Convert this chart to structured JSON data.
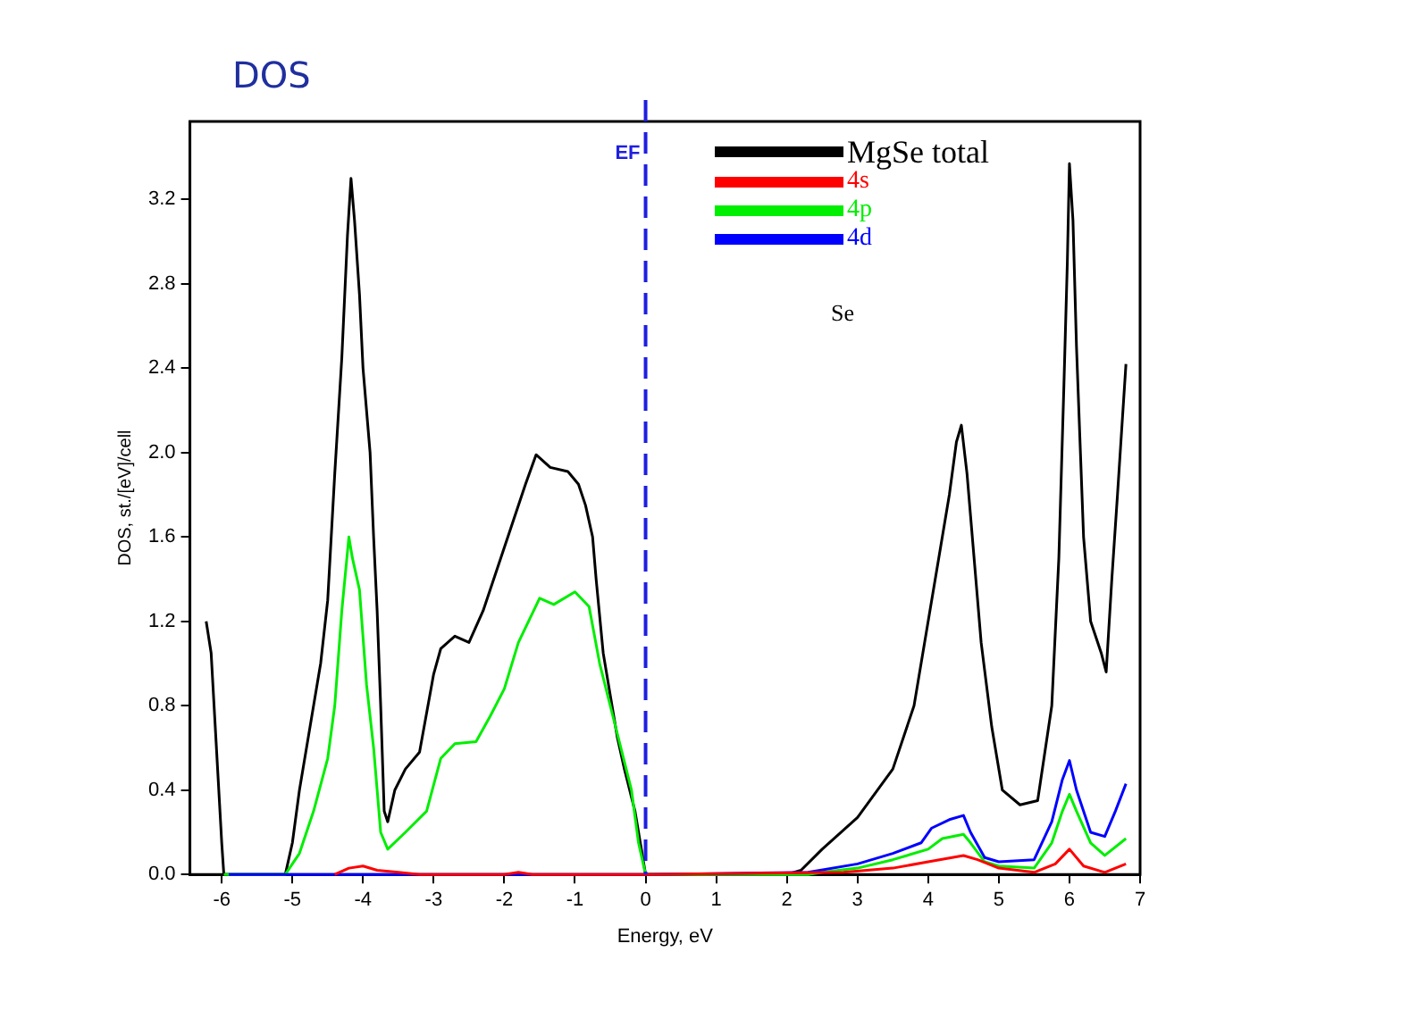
{
  "chart_data": {
    "type": "line",
    "title": "DOS",
    "xlabel": "Energy, eV",
    "ylabel": "DOS, st./[eV]/cell",
    "xlim": [
      -6.45,
      7
    ],
    "xticks": [
      -6,
      -5,
      -4,
      -3,
      -2,
      -1,
      0,
      1,
      2,
      3,
      4,
      5,
      6,
      7
    ],
    "ylim": [
      0,
      3.57
    ],
    "yticks": [
      {
        "value": 0,
        "label": "0.0"
      },
      0.4,
      0.8,
      1.2,
      1.6,
      {
        "value": 2,
        "label": "2.0"
      },
      2.4,
      2.8,
      3.2
    ],
    "grid": false,
    "legend": "top right",
    "marker": "none",
    "line_style": "solid",
    "annotations": [
      "Se"
    ],
    "ref_lines": [
      {
        "axis": "x",
        "value": 0,
        "label": "EF",
        "color": "#1f1fe0",
        "line_style": "dashed"
      }
    ],
    "series": [
      {
        "name": "MgSe total",
        "color": "#000000",
        "x": [
          -6.22,
          -6.15,
          -6.1,
          -6.05,
          -6.0,
          -5.97,
          -5.1,
          -5.0,
          -4.9,
          -4.8,
          -4.7,
          -4.6,
          -4.5,
          -4.4,
          -4.3,
          -4.22,
          -4.17,
          -4.12,
          -4.05,
          -4.0,
          -3.9,
          -3.85,
          -3.8,
          -3.75,
          -3.7,
          -3.65,
          -3.55,
          -3.4,
          -3.2,
          -3.0,
          -2.9,
          -2.7,
          -2.5,
          -2.3,
          -2.1,
          -1.9,
          -1.7,
          -1.55,
          -1.35,
          -1.1,
          -0.95,
          -0.85,
          -0.75,
          -0.7,
          -0.6,
          -0.5,
          -0.4,
          -0.3,
          -0.15,
          -0.05,
          0,
          2.0,
          2.2,
          2.5,
          3.0,
          3.5,
          3.8,
          4.0,
          4.15,
          4.3,
          4.4,
          4.47,
          4.55,
          4.65,
          4.75,
          4.9,
          5.05,
          5.3,
          5.55,
          5.75,
          5.85,
          5.92,
          5.97,
          6.0,
          6.05,
          6.1,
          6.2,
          6.3,
          6.45,
          6.52,
          6.6,
          6.68,
          6.8
        ],
        "values": [
          1.2,
          1.05,
          0.75,
          0.45,
          0.15,
          0,
          0,
          0.15,
          0.4,
          0.6,
          0.8,
          1.0,
          1.3,
          1.9,
          2.45,
          3.03,
          3.3,
          3.1,
          2.75,
          2.4,
          2.0,
          1.6,
          1.25,
          0.8,
          0.3,
          0.25,
          0.4,
          0.5,
          0.58,
          0.95,
          1.07,
          1.13,
          1.1,
          1.25,
          1.45,
          1.65,
          1.85,
          1.99,
          1.93,
          1.91,
          1.85,
          1.75,
          1.6,
          1.4,
          1.05,
          0.85,
          0.65,
          0.5,
          0.3,
          0.1,
          0,
          0,
          0.02,
          0.12,
          0.27,
          0.5,
          0.8,
          1.2,
          1.5,
          1.8,
          2.05,
          2.13,
          1.9,
          1.5,
          1.1,
          0.7,
          0.4,
          0.33,
          0.35,
          0.8,
          1.5,
          2.3,
          2.9,
          3.37,
          3.1,
          2.5,
          1.6,
          1.2,
          1.05,
          0.96,
          1.4,
          1.8,
          2.42
        ]
      },
      {
        "name": "4s",
        "color": "#ff0000",
        "x": [
          -4.4,
          -4.2,
          -4.0,
          -3.8,
          -3.5,
          -3.2,
          -2.0,
          -1.8,
          -1.6,
          0,
          2.8,
          3.5,
          4.0,
          4.5,
          4.7,
          5.0,
          5.5,
          5.8,
          6.0,
          6.2,
          6.5,
          6.8
        ],
        "values": [
          0,
          0.03,
          0.04,
          0.02,
          0.01,
          0,
          0,
          0.01,
          0,
          0,
          0.01,
          0.03,
          0.06,
          0.09,
          0.07,
          0.03,
          0.01,
          0.05,
          0.12,
          0.04,
          0.01,
          0.05
        ]
      },
      {
        "name": "4p",
        "color": "#00ee00",
        "x": [
          -5.97,
          -5.1,
          -4.9,
          -4.7,
          -4.5,
          -4.4,
          -4.3,
          -4.2,
          -4.15,
          -4.05,
          -3.95,
          -3.85,
          -3.75,
          -3.65,
          -3.4,
          -3.1,
          -2.9,
          -2.7,
          -2.4,
          -2.2,
          -2.0,
          -1.8,
          -1.5,
          -1.3,
          -1.0,
          -0.8,
          -0.65,
          -0.5,
          -0.35,
          -0.2,
          -0.1,
          0,
          2.3,
          2.5,
          3.0,
          3.5,
          4.0,
          4.2,
          4.5,
          4.6,
          4.8,
          5.0,
          5.5,
          5.75,
          5.9,
          6.0,
          6.1,
          6.3,
          6.5,
          6.8
        ],
        "values": [
          0,
          0,
          0.1,
          0.3,
          0.55,
          0.8,
          1.25,
          1.6,
          1.5,
          1.35,
          0.9,
          0.6,
          0.2,
          0.12,
          0.2,
          0.3,
          0.55,
          0.62,
          0.63,
          0.75,
          0.88,
          1.1,
          1.31,
          1.28,
          1.34,
          1.27,
          1.0,
          0.8,
          0.6,
          0.4,
          0.15,
          0,
          0,
          0.01,
          0.03,
          0.07,
          0.12,
          0.17,
          0.19,
          0.15,
          0.06,
          0.04,
          0.03,
          0.15,
          0.3,
          0.38,
          0.3,
          0.15,
          0.09,
          0.17
        ]
      },
      {
        "name": "4d",
        "color": "#0000ff",
        "x": [
          -5.9,
          0,
          2.3,
          3.0,
          3.5,
          3.9,
          4.05,
          4.3,
          4.5,
          4.6,
          4.8,
          5.0,
          5.5,
          5.75,
          5.9,
          6.0,
          6.1,
          6.3,
          6.5,
          6.65,
          6.8
        ],
        "values": [
          0,
          0,
          0.01,
          0.05,
          0.1,
          0.15,
          0.22,
          0.26,
          0.28,
          0.2,
          0.08,
          0.06,
          0.07,
          0.25,
          0.45,
          0.54,
          0.4,
          0.2,
          0.18,
          0.3,
          0.43
        ]
      }
    ]
  }
}
